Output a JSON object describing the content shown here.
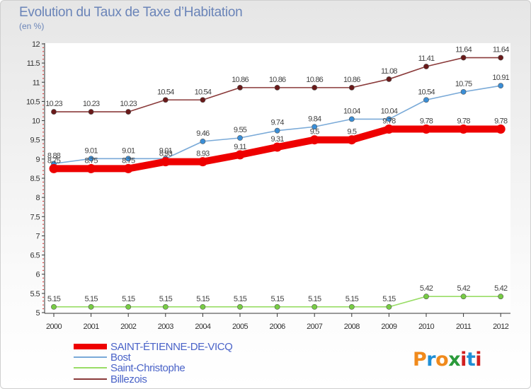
{
  "chart_data": {
    "type": "line",
    "title": "Evolution du Taux de Taxe d’Habitation",
    "subtitle": "(en %)",
    "xlabel": "",
    "ylabel": "(en %)",
    "ylim": [
      5,
      12
    ],
    "y_ticks": [
      "5",
      "5.5",
      "6",
      "6.5",
      "7",
      "7.5",
      "8",
      "8.5",
      "9",
      "9.5",
      "10",
      "10.5",
      "11",
      "11.5",
      "12"
    ],
    "categories": [
      "2000",
      "2001",
      "2002",
      "2003",
      "2004",
      "2005",
      "2006",
      "2007",
      "2008",
      "2009",
      "2010",
      "2011",
      "2012"
    ],
    "legend_position": "bottom-left",
    "series": [
      {
        "name": "SAINT-ÉTIENNE-DE-VICQ",
        "color": "#ee0000",
        "marker_color": "#ee0000",
        "values": [
          8.75,
          8.75,
          8.75,
          8.93,
          8.93,
          9.11,
          9.31,
          9.5,
          9.5,
          9.78,
          9.78,
          9.78,
          9.78
        ],
        "labels": [
          "8.75",
          "8.75",
          "8.75",
          "8.93",
          "8.93",
          "9.11",
          "9.31",
          "9.5",
          "9.5",
          "9.78",
          "9.78",
          "9.78",
          "9.78"
        ]
      },
      {
        "name": "Bost",
        "color": "#7aaad8",
        "marker_color": "#3a8ed6",
        "values": [
          8.88,
          9.01,
          9.01,
          9.01,
          9.46,
          9.55,
          9.74,
          9.84,
          10.04,
          10.04,
          10.54,
          10.75,
          10.91
        ],
        "labels": [
          "8.88",
          "9.01",
          "9.01",
          "9.01",
          "9.46",
          "9.55",
          "9.74",
          "9.84",
          "10.04",
          "10.04",
          "10.54",
          "10.75",
          "10.91"
        ]
      },
      {
        "name": "Saint-Christophe",
        "color": "#99dd66",
        "marker_color": "#77cc44",
        "values": [
          5.15,
          5.15,
          5.15,
          5.15,
          5.15,
          5.15,
          5.15,
          5.15,
          5.15,
          5.15,
          5.42,
          5.42,
          5.42
        ],
        "labels": [
          "5.15",
          "5.15",
          "5.15",
          "5.15",
          "5.15",
          "5.15",
          "5.15",
          "5.15",
          "5.15",
          "5.15",
          "5.42",
          "5.42",
          "5.42"
        ]
      },
      {
        "name": "Billezois",
        "color": "#8a3a3a",
        "marker_color": "#6a1a1a",
        "values": [
          10.23,
          10.23,
          10.23,
          10.54,
          10.54,
          10.86,
          10.86,
          10.86,
          10.86,
          11.08,
          11.41,
          11.64,
          11.64
        ],
        "labels": [
          "10.23",
          "10.23",
          "10.23",
          "10.54",
          "10.54",
          "10.86",
          "10.86",
          "10.86",
          "10.86",
          "11.08",
          "11.41",
          "11.64",
          "11.64"
        ]
      }
    ]
  },
  "logo": {
    "text": "Proxiti",
    "letters": [
      "P",
      "r",
      "o",
      "x",
      "i",
      "t",
      "i"
    ],
    "colors": [
      "#f08a1c",
      "#1f8fd6",
      "#f08a1c",
      "#2a9a3a",
      "#d12020",
      "#1f8fd6",
      "#d12020"
    ]
  }
}
